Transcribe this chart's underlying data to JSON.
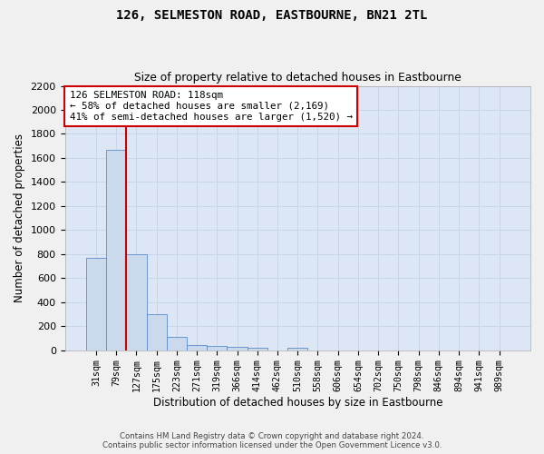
{
  "title": "126, SELMESTON ROAD, EASTBOURNE, BN21 2TL",
  "subtitle": "Size of property relative to detached houses in Eastbourne",
  "xlabel": "Distribution of detached houses by size in Eastbourne",
  "ylabel": "Number of detached properties",
  "footer1": "Contains HM Land Registry data © Crown copyright and database right 2024.",
  "footer2": "Contains public sector information licensed under the Open Government Licence v3.0.",
  "categories": [
    "31sqm",
    "79sqm",
    "127sqm",
    "175sqm",
    "223sqm",
    "271sqm",
    "319sqm",
    "366sqm",
    "414sqm",
    "462sqm",
    "510sqm",
    "558sqm",
    "606sqm",
    "654sqm",
    "702sqm",
    "750sqm",
    "798sqm",
    "846sqm",
    "894sqm",
    "941sqm",
    "989sqm"
  ],
  "values": [
    770,
    1670,
    800,
    300,
    110,
    45,
    32,
    25,
    22,
    0,
    22,
    0,
    0,
    0,
    0,
    0,
    0,
    0,
    0,
    0,
    0
  ],
  "bar_color": "#cad9ec",
  "bar_edge_color": "#5b8cc8",
  "annotation_line1": "126 SELMESTON ROAD: 118sqm",
  "annotation_line2": "← 58% of detached houses are smaller (2,169)",
  "annotation_line3": "41% of semi-detached houses are larger (1,520) →",
  "annotation_box_facecolor": "#ffffff",
  "annotation_box_edgecolor": "#cc0000",
  "ylim_max": 2200,
  "yticks": [
    0,
    200,
    400,
    600,
    800,
    1000,
    1200,
    1400,
    1600,
    1800,
    2000,
    2200
  ],
  "vline_color": "#cc0000",
  "vline_x": 1.5,
  "grid_color": "#c8d4e8",
  "bg_color": "#dce6f5",
  "fig_facecolor": "#f0f0f0"
}
